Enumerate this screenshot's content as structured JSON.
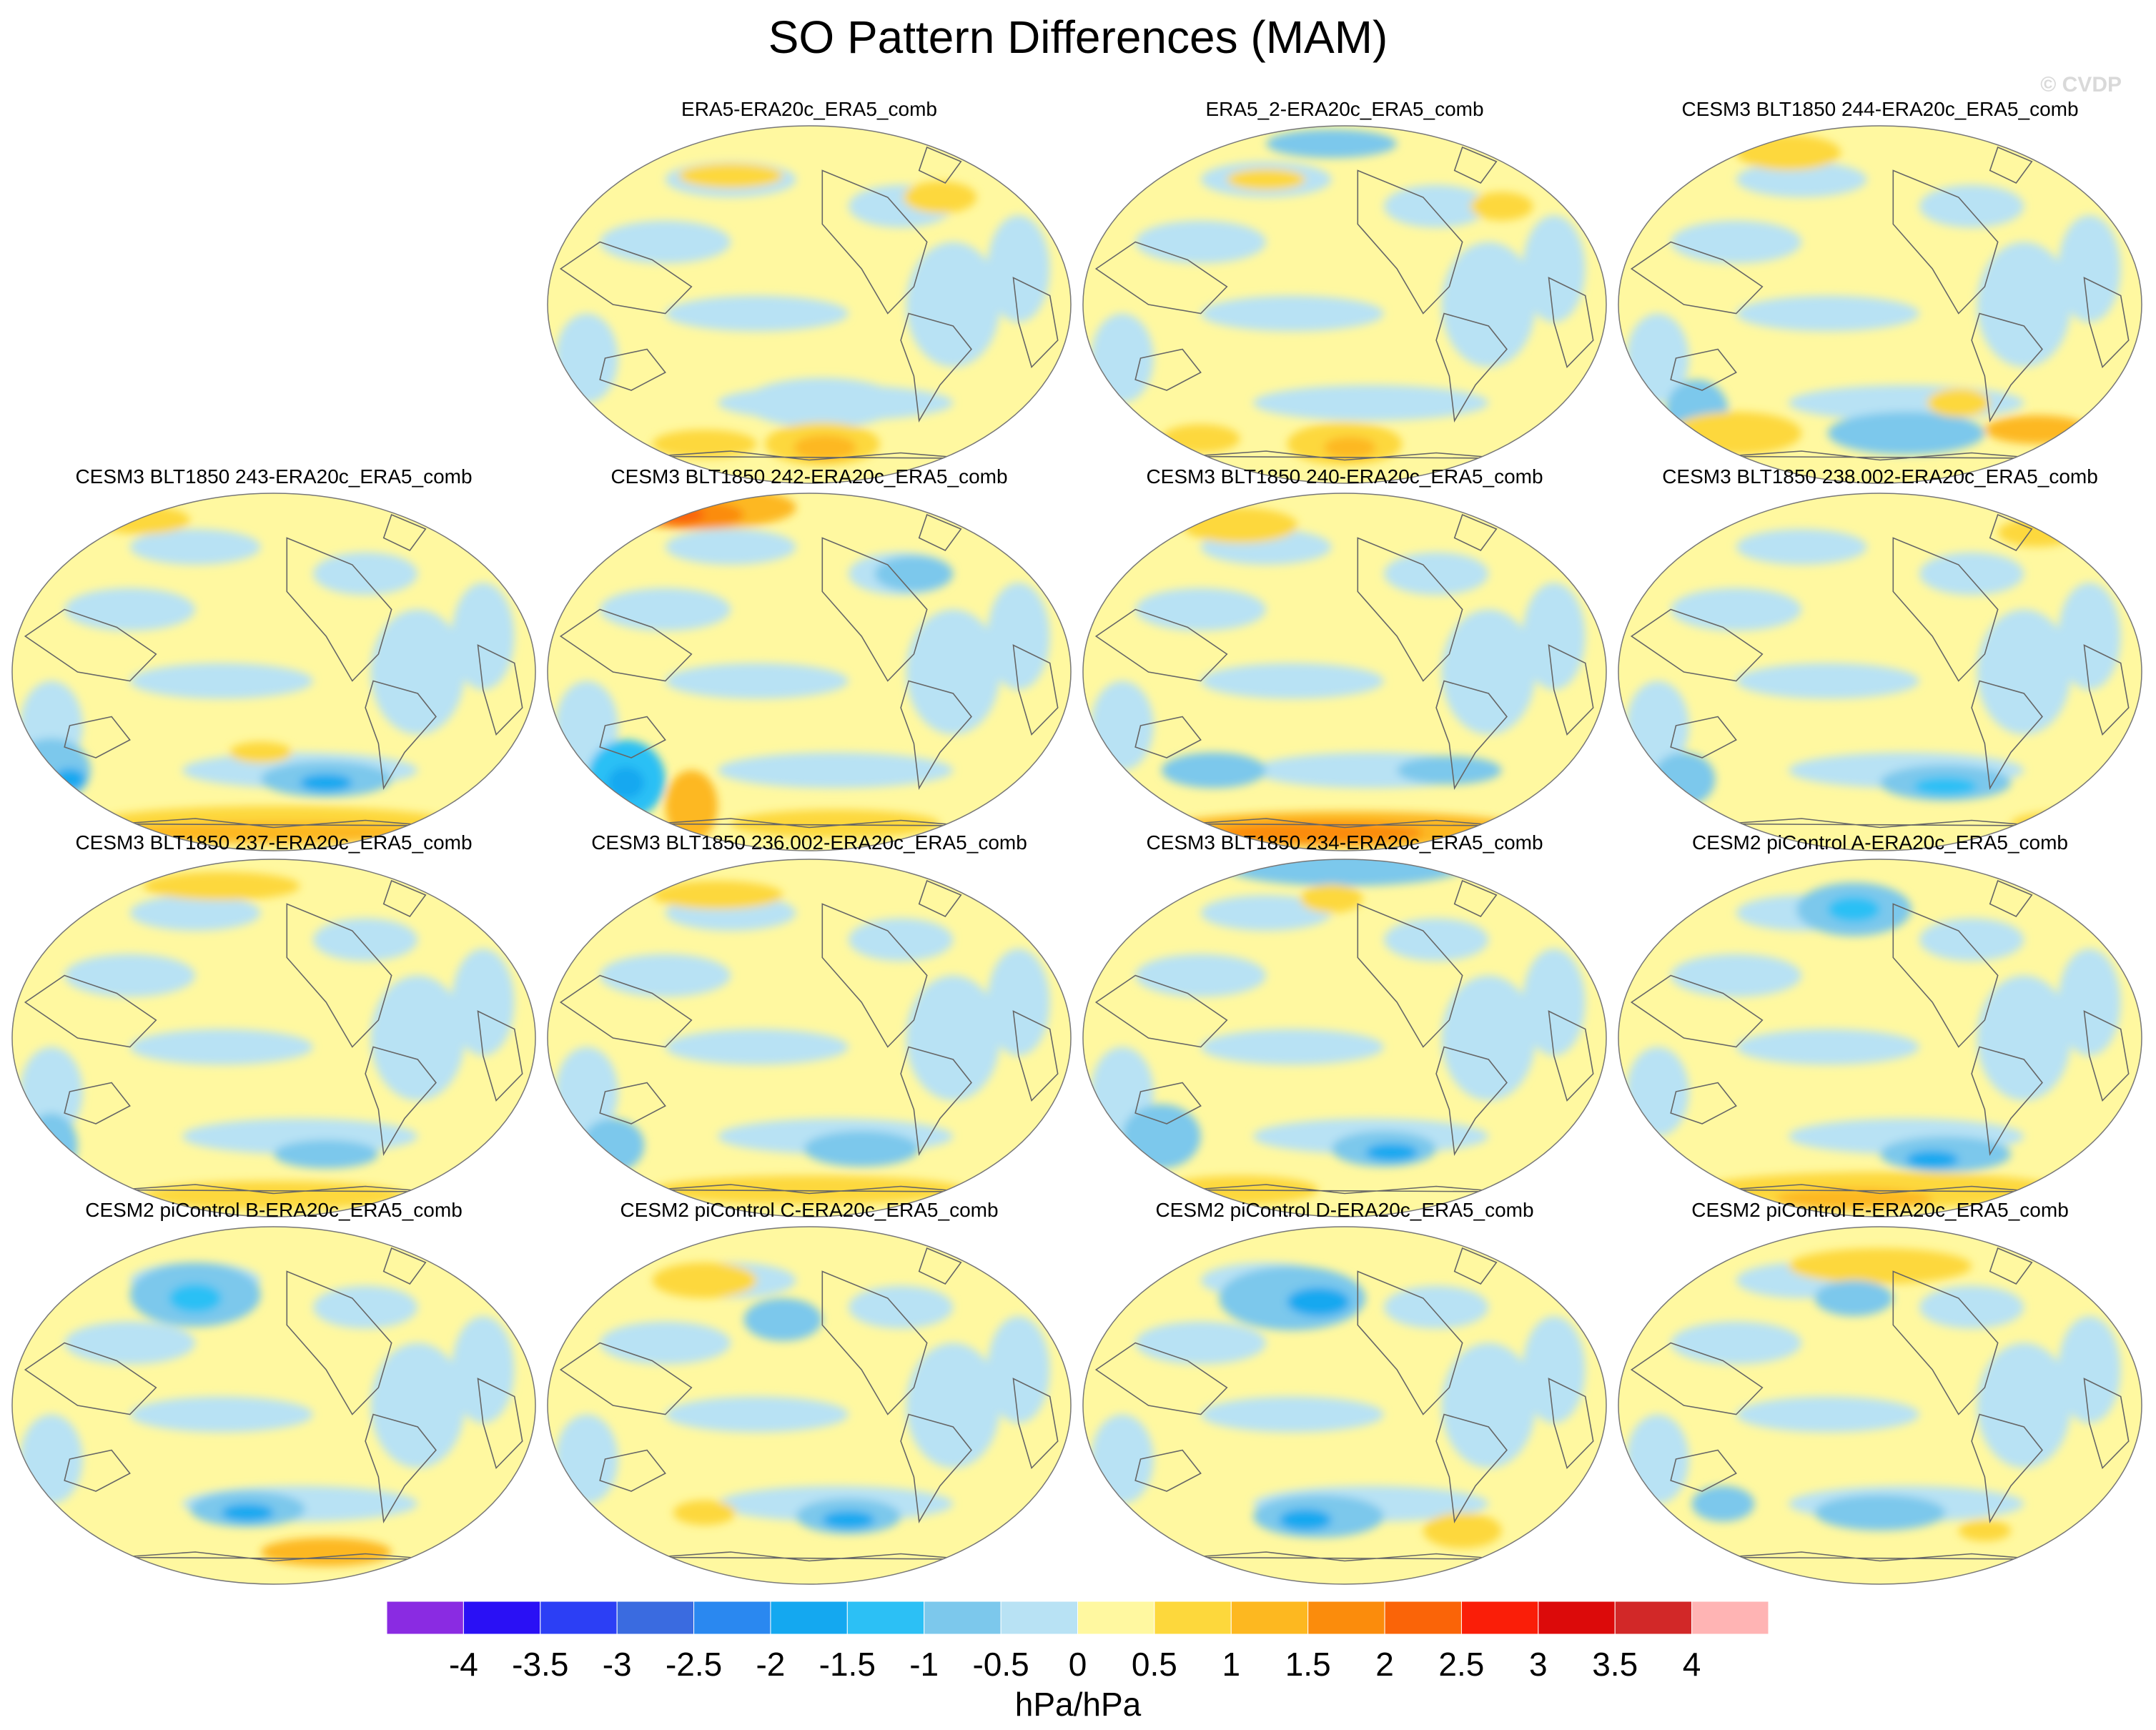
{
  "title": "SO Pattern Differences (MAM)",
  "watermark": "© CVDP",
  "chart_data": {
    "type": "heatmap",
    "title": "SO Pattern Differences (MAM)",
    "projection": "Robinson (Pacific-centred)",
    "panels": [
      {
        "title": "ERA5-ERA20c_ERA5_comb",
        "position": "row1-col2"
      },
      {
        "title": "ERA5_2-ERA20c_ERA5_comb",
        "position": "row1-col3"
      },
      {
        "title": "CESM3 BLT1850 244-ERA20c_ERA5_comb",
        "position": "row1-col4"
      },
      {
        "title": "CESM3 BLT1850 243-ERA20c_ERA5_comb",
        "position": "row2-col1"
      },
      {
        "title": "CESM3 BLT1850 242-ERA20c_ERA5_comb",
        "position": "row2-col2"
      },
      {
        "title": "CESM3 BLT1850 240-ERA20c_ERA5_comb",
        "position": "row2-col3"
      },
      {
        "title": "CESM3 BLT1850 238.002-ERA20c_ERA5_comb",
        "position": "row2-col4"
      },
      {
        "title": "CESM3 BLT1850 237-ERA20c_ERA5_comb",
        "position": "row3-col1"
      },
      {
        "title": "CESM3 BLT1850 236.002-ERA20c_ERA5_comb",
        "position": "row3-col2"
      },
      {
        "title": "CESM3 BLT1850 234-ERA20c_ERA5_comb",
        "position": "row3-col3"
      },
      {
        "title": "CESM2 piControl A-ERA20c_ERA5_comb",
        "position": "row3-col4"
      },
      {
        "title": "CESM2 piControl B-ERA20c_ERA5_comb",
        "position": "row4-col1"
      },
      {
        "title": "CESM2 piControl C-ERA20c_ERA5_comb",
        "position": "row4-col2"
      },
      {
        "title": "CESM2 piControl D-ERA20c_ERA5_comb",
        "position": "row4-col3"
      },
      {
        "title": "CESM2 piControl E-ERA20c_ERA5_comb",
        "position": "row4-col4"
      }
    ],
    "colorbar": {
      "label": "hPa/hPa",
      "ticks": [
        "-4",
        "-3.5",
        "-3",
        "-2.5",
        "-2",
        "-1.5",
        "-1",
        "-0.5",
        "0",
        "0.5",
        "1",
        "1.5",
        "2",
        "2.5",
        "3",
        "3.5",
        "4"
      ],
      "colors": [
        "#8a2be2",
        "#2a10f5",
        "#2c3ff5",
        "#3a6be0",
        "#2a88f0",
        "#14a8f0",
        "#2cc0f5",
        "#7cc8ec",
        "#b8e2f4",
        "#fff8a0",
        "#fdd83c",
        "#fdb820",
        "#fb8c0c",
        "#fa6408",
        "#fa1e08",
        "#dc0a0a",
        "#d22828",
        "#ffb4b4"
      ]
    }
  }
}
